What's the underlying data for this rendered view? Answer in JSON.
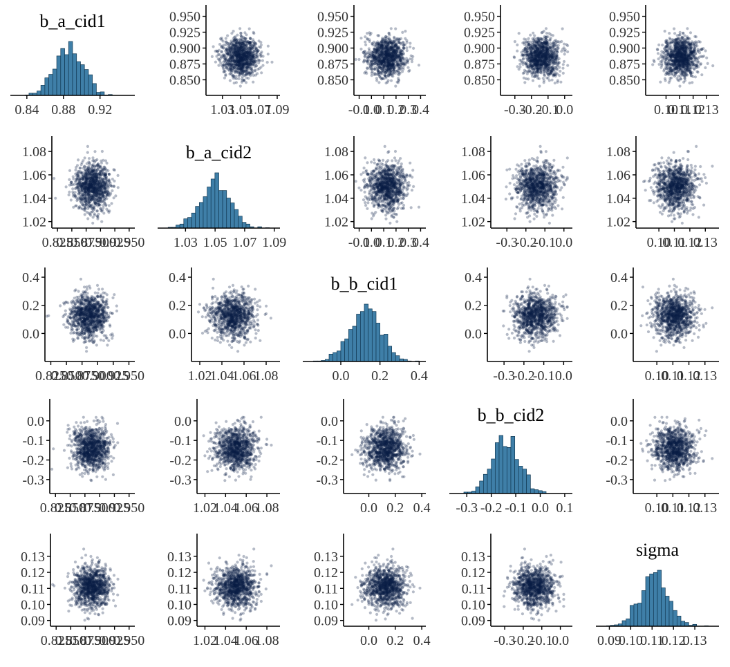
{
  "chart_data": {
    "type": "scatter",
    "description_type": "pairs",
    "parameters": [
      {
        "name": "b_a_cid1",
        "mean": 0.886,
        "sd": 0.016,
        "ticks": [
          0.84,
          0.88,
          0.92
        ],
        "tick_labels": [
          "0.84",
          "0.88",
          "0.92"
        ],
        "range": [
          0.825,
          0.955
        ],
        "y_ticks": [
          0.85,
          0.875,
          0.9,
          0.925,
          0.95
        ],
        "y_tick_labels": [
          "0.850",
          "0.875",
          "0.900",
          "0.925",
          "0.950"
        ],
        "y_range": [
          0.832,
          0.955
        ]
      },
      {
        "name": "b_a_cid2",
        "mean": 1.05,
        "sd": 0.01,
        "ticks": [
          1.03,
          1.05,
          1.07,
          1.09
        ],
        "tick_labels": [
          "1.03",
          "1.05",
          "1.07",
          "1.09"
        ],
        "range": [
          1.013,
          1.092
        ],
        "y_ticks": [
          1.02,
          1.04,
          1.06,
          1.08
        ],
        "y_tick_labels": [
          "1.02",
          "1.04",
          "1.06",
          "1.08"
        ],
        "y_range": [
          1.018,
          1.086
        ]
      },
      {
        "name": "b_b_cid1",
        "mean": 0.13,
        "sd": 0.08,
        "ticks": [
          0.0,
          0.2,
          0.4
        ],
        "tick_labels": [
          "0.0",
          "0.2",
          "0.4"
        ],
        "range": [
          -0.18,
          0.42
        ],
        "y_ticks": [
          0.0,
          0.2,
          0.4
        ],
        "y_tick_labels": [
          "0.0",
          "0.2",
          "0.4"
        ],
        "y_range": [
          -0.17,
          0.41
        ]
      },
      {
        "name": "b_b_cid2",
        "mean": -0.14,
        "sd": 0.055,
        "ticks": [
          -0.3,
          -0.2,
          -0.1,
          0.0,
          0.1
        ],
        "tick_labels": [
          "-0.3",
          "-0.2",
          "-0.1",
          "0.0",
          "0.1"
        ],
        "range": [
          -0.36,
          0.12
        ],
        "y_ticks": [
          -0.3,
          -0.2,
          -0.1,
          0.0
        ],
        "y_tick_labels": [
          "-0.3",
          "-0.2",
          "-0.1",
          "0.0"
        ],
        "y_range": [
          -0.35,
          0.07
        ]
      },
      {
        "name": "sigma",
        "mean": 0.111,
        "sd": 0.0065,
        "ticks": [
          0.09,
          0.1,
          0.11,
          0.12,
          0.13
        ],
        "tick_labels": [
          "0.09",
          "0.10",
          "0.11",
          "0.12",
          "0.13"
        ],
        "range": [
          0.085,
          0.14
        ],
        "y_ticks": [
          0.09,
          0.1,
          0.11,
          0.12,
          0.13
        ],
        "y_tick_labels": [
          "0.09",
          "0.10",
          "0.11",
          "0.12",
          "0.13"
        ],
        "y_range": [
          0.089,
          0.139
        ]
      }
    ],
    "x_axis_variants": {
      "b_a_cid1_offdiag": {
        "ticks": [
          0.825,
          0.85,
          0.875,
          0.9,
          0.925,
          0.95
        ],
        "tick_labels": [
          "0.825",
          "0.850",
          "0.875",
          "0.900",
          "0.925",
          "0.950"
        ],
        "range": [
          0.82,
          0.955
        ]
      },
      "b_a_cid2_row0": {
        "ticks": [
          1.03,
          1.05,
          1.07,
          1.09
        ],
        "tick_labels": [
          "1.03",
          "1.05",
          "1.07",
          "1.09"
        ],
        "range": [
          1.015,
          1.09
        ]
      },
      "b_a_cid2_lower": {
        "ticks": [
          1.02,
          1.04,
          1.06,
          1.08
        ],
        "tick_labels": [
          "1.02",
          "1.04",
          "1.06",
          "1.08"
        ],
        "range": [
          1.015,
          1.09
        ]
      },
      "b_b_cid1_upper": {
        "ticks": [
          -0.1,
          0.0,
          0.1,
          0.2,
          0.3,
          0.4
        ],
        "tick_labels": [
          "-0.1",
          "0.0",
          "0.1",
          "0.2",
          "0.3",
          "0.4"
        ],
        "range": [
          -0.12,
          0.42
        ]
      },
      "b_b_cid2_upper": {
        "ticks": [
          -0.3,
          -0.2,
          -0.1,
          0.0
        ],
        "tick_labels": [
          "-0.3",
          "-0.2",
          "-0.1",
          "0.0"
        ],
        "range": [
          -0.37,
          0.03
        ]
      },
      "sigma_upper": {
        "ticks": [
          0.1,
          0.11,
          0.12,
          0.13
        ],
        "tick_labels": [
          "0.10",
          "0.11",
          "0.12",
          "0.13"
        ],
        "range": [
          0.087,
          0.137
        ]
      }
    },
    "draws_per_panel": 1000,
    "colors": {
      "points": "#0b1f45",
      "hist_fill": "#3f7fa8",
      "hist_edge": "#123852",
      "axis": "#000000"
    }
  }
}
